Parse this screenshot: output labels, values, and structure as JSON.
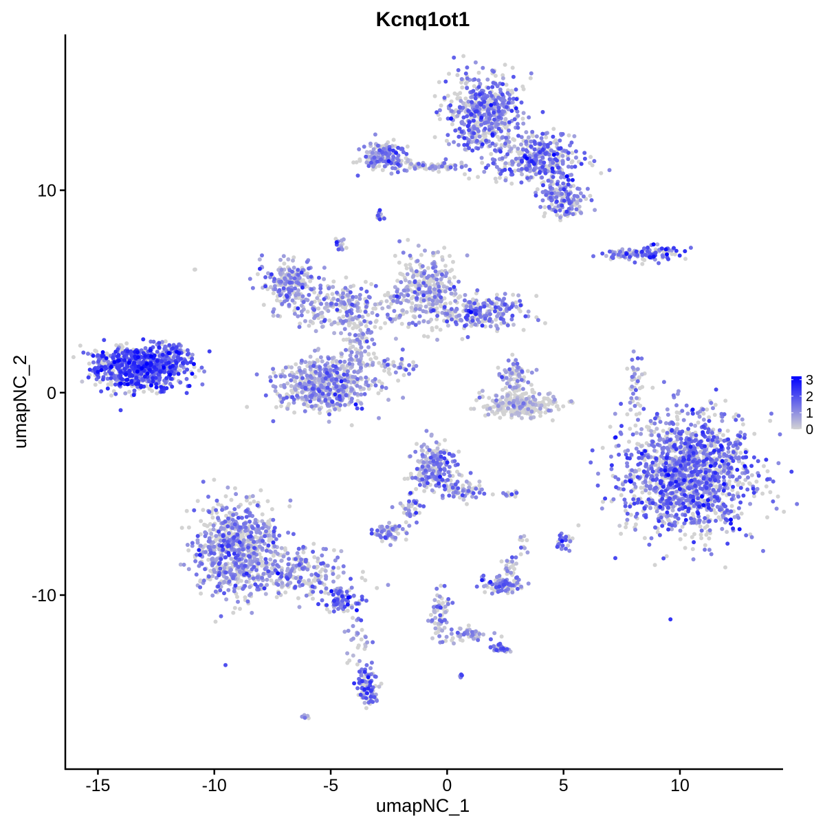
{
  "chart_data": {
    "type": "scatter",
    "title": "Kcnq1ot1",
    "xlabel": "umapNC_1",
    "ylabel": "umapNC_2",
    "xlim": [
      -16.4,
      14.4
    ],
    "ylim": [
      -18.6,
      17.7
    ],
    "xticks": [
      -15,
      -10,
      -5,
      0,
      5,
      10
    ],
    "yticks": [
      -10,
      0,
      10
    ],
    "grid": false,
    "colors": {
      "low": "#d3d3d3",
      "high": "#0000ff"
    },
    "legend": {
      "position": "right",
      "ticks": [
        0,
        1,
        2,
        3
      ],
      "range": [
        0,
        3.2
      ]
    },
    "clusters": [
      {
        "center": [
          -13.2,
          1.2
        ],
        "sd": [
          1.0,
          0.55
        ],
        "n": 700,
        "expr": 1.9
      },
      {
        "center": [
          -11.9,
          1.8
        ],
        "sd": [
          0.4,
          0.35
        ],
        "n": 80,
        "expr": 1.6
      },
      {
        "center": [
          1.6,
          13.8
        ],
        "sd": [
          0.8,
          1.0
        ],
        "n": 500,
        "expr": 1.2
      },
      {
        "center": [
          4.0,
          11.6
        ],
        "sd": [
          0.9,
          0.6
        ],
        "n": 350,
        "expr": 1.3
      },
      {
        "center": [
          5.0,
          9.6
        ],
        "sd": [
          0.5,
          0.5
        ],
        "n": 150,
        "expr": 1.1
      },
      {
        "center": [
          -2.7,
          11.7
        ],
        "sd": [
          0.5,
          0.35
        ],
        "n": 150,
        "expr": 1.1
      },
      {
        "center": [
          -0.8,
          11.2
        ],
        "sd": [
          0.9,
          0.12
        ],
        "n": 70,
        "expr": 0.8
      },
      {
        "center": [
          -2.9,
          8.7
        ],
        "sd": [
          0.1,
          0.15
        ],
        "n": 12,
        "expr": 1.0
      },
      {
        "center": [
          -6.8,
          5.4
        ],
        "sd": [
          0.55,
          0.6
        ],
        "n": 200,
        "expr": 1.0
      },
      {
        "center": [
          -4.2,
          4.2
        ],
        "sd": [
          1.2,
          0.6
        ],
        "n": 250,
        "expr": 0.8
      },
      {
        "center": [
          -0.9,
          5.0
        ],
        "sd": [
          0.7,
          0.9
        ],
        "n": 300,
        "expr": 0.8
      },
      {
        "center": [
          1.6,
          4.0
        ],
        "sd": [
          0.9,
          0.45
        ],
        "n": 220,
        "expr": 1.1
      },
      {
        "center": [
          -5.2,
          0.4
        ],
        "sd": [
          1.0,
          0.65
        ],
        "n": 500,
        "expr": 0.9
      },
      {
        "center": [
          -3.8,
          2.2
        ],
        "sd": [
          0.35,
          0.8
        ],
        "n": 100,
        "expr": 0.6
      },
      {
        "center": [
          -2.4,
          1.3
        ],
        "sd": [
          0.6,
          0.3
        ],
        "n": 40,
        "expr": 0.9
      },
      {
        "center": [
          -4.6,
          7.3
        ],
        "sd": [
          0.1,
          0.2
        ],
        "n": 15,
        "expr": 1.3
      },
      {
        "center": [
          8.8,
          6.9
        ],
        "sd": [
          0.6,
          0.2
        ],
        "n": 80,
        "expr": 1.6
      },
      {
        "center": [
          7.4,
          6.8
        ],
        "sd": [
          0.4,
          0.15
        ],
        "n": 40,
        "expr": 1.2
      },
      {
        "center": [
          3.2,
          -0.6
        ],
        "sd": [
          0.8,
          0.3
        ],
        "n": 250,
        "expr": 0.15
      },
      {
        "center": [
          3.0,
          0.8
        ],
        "sd": [
          0.35,
          0.5
        ],
        "n": 80,
        "expr": 0.6
      },
      {
        "center": [
          10.4,
          -4.0
        ],
        "sd": [
          1.4,
          1.5
        ],
        "n": 1400,
        "expr": 1.4
      },
      {
        "center": [
          8.1,
          0.5
        ],
        "sd": [
          0.15,
          0.9
        ],
        "n": 40,
        "expr": 1.0
      },
      {
        "center": [
          -9.0,
          -7.7
        ],
        "sd": [
          0.9,
          1.2
        ],
        "n": 700,
        "expr": 1.0
      },
      {
        "center": [
          -6.5,
          -8.9
        ],
        "sd": [
          1.2,
          0.6
        ],
        "n": 250,
        "expr": 1.0
      },
      {
        "center": [
          -4.5,
          -10.2
        ],
        "sd": [
          0.4,
          0.3
        ],
        "n": 80,
        "expr": 1.4
      },
      {
        "center": [
          -3.8,
          -12.2
        ],
        "sd": [
          0.25,
          0.7
        ],
        "n": 30,
        "expr": 0.9
      },
      {
        "center": [
          -3.4,
          -14.5
        ],
        "sd": [
          0.25,
          0.5
        ],
        "n": 90,
        "expr": 1.5
      },
      {
        "center": [
          -0.5,
          -3.7
        ],
        "sd": [
          0.5,
          0.6
        ],
        "n": 200,
        "expr": 1.1
      },
      {
        "center": [
          0.6,
          -4.8
        ],
        "sd": [
          0.5,
          0.3
        ],
        "n": 60,
        "expr": 0.9
      },
      {
        "center": [
          -1.6,
          -5.8
        ],
        "sd": [
          0.25,
          0.4
        ],
        "n": 35,
        "expr": 0.9
      },
      {
        "center": [
          -2.6,
          -6.9
        ],
        "sd": [
          0.35,
          0.25
        ],
        "n": 60,
        "expr": 1.0
      },
      {
        "center": [
          2.4,
          -9.5
        ],
        "sd": [
          0.4,
          0.2
        ],
        "n": 100,
        "expr": 1.3
      },
      {
        "center": [
          2.7,
          -8.6
        ],
        "sd": [
          0.15,
          0.35
        ],
        "n": 20,
        "expr": 1.0
      },
      {
        "center": [
          5.0,
          -7.3
        ],
        "sd": [
          0.15,
          0.2
        ],
        "n": 30,
        "expr": 1.4
      },
      {
        "center": [
          2.8,
          -5.0
        ],
        "sd": [
          0.25,
          0.06
        ],
        "n": 12,
        "expr": 1.2
      },
      {
        "center": [
          3.3,
          -7.6
        ],
        "sd": [
          0.1,
          0.3
        ],
        "n": 10,
        "expr": 0.9
      },
      {
        "center": [
          -0.3,
          -10.8
        ],
        "sd": [
          0.2,
          0.7
        ],
        "n": 60,
        "expr": 0.9
      },
      {
        "center": [
          1.0,
          -12.0
        ],
        "sd": [
          0.6,
          0.2
        ],
        "n": 50,
        "expr": 0.7
      },
      {
        "center": [
          2.3,
          -12.6
        ],
        "sd": [
          0.2,
          0.12
        ],
        "n": 30,
        "expr": 1.3
      },
      {
        "center": [
          -6.1,
          -16.0
        ],
        "sd": [
          0.08,
          0.06
        ],
        "n": 6,
        "expr": 1.1
      },
      {
        "center": [
          0.6,
          -14.0
        ],
        "sd": [
          0.06,
          0.06
        ],
        "n": 5,
        "expr": 1.0
      },
      {
        "center": [
          -10.8,
          6.1
        ],
        "sd": [
          0.05,
          0.05
        ],
        "n": 2,
        "expr": 0.0
      }
    ]
  }
}
